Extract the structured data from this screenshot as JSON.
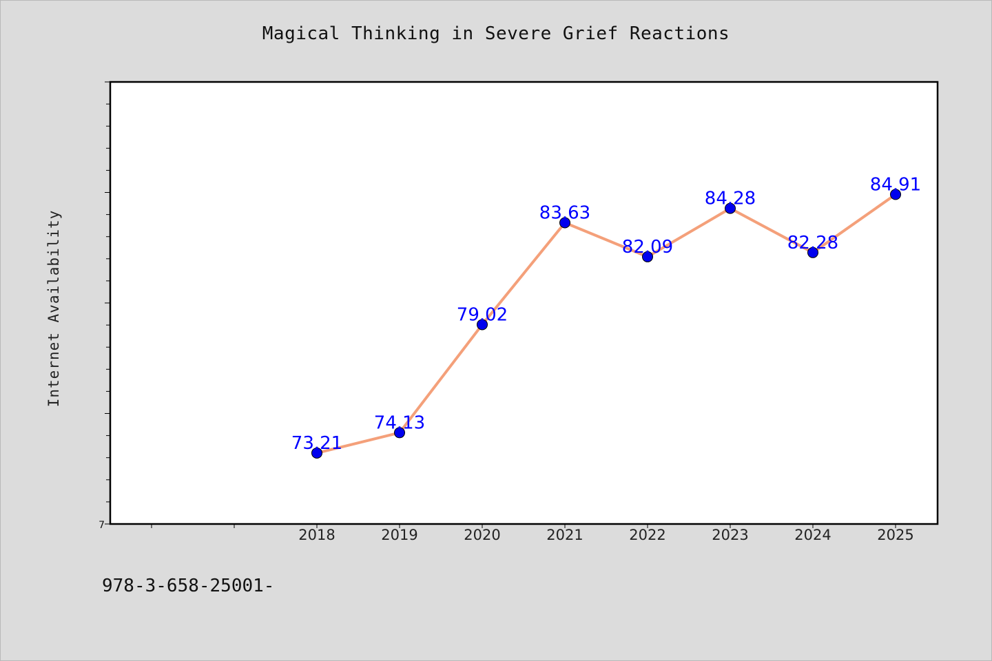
{
  "chart_data": {
    "type": "line",
    "title": "Magical Thinking in Severe Grief Reactions",
    "xlabel": "",
    "ylabel": "Internet Availability",
    "categories": [
      "2018",
      "2019",
      "2020",
      "2021",
      "2022",
      "2023",
      "2024",
      "2025"
    ],
    "series": [
      {
        "values": [
          73.21,
          74.13,
          79.02,
          83.63,
          82.09,
          84.28,
          82.28,
          84.91
        ],
        "data_labels": [
          "73.21",
          "74.13",
          "79.02",
          "83.63",
          "82.09",
          "84.28",
          "82.28",
          "84.91"
        ],
        "line_color": "#f4a07a",
        "marker_color": "#0000ee",
        "label_color": "#0000ff"
      }
    ],
    "x_extra_ticks_before": 2,
    "ylim": [
      70,
      90
    ],
    "y_ticks": [
      70,
      71,
      72,
      73,
      74,
      75,
      76,
      77,
      78,
      79,
      80,
      81,
      82,
      83,
      84,
      85,
      86,
      87,
      88,
      89,
      90
    ],
    "y_tick_labels_shown": [
      "7"
    ],
    "grid": false,
    "legend": "none"
  },
  "footnote": "978-3-658-25001-"
}
